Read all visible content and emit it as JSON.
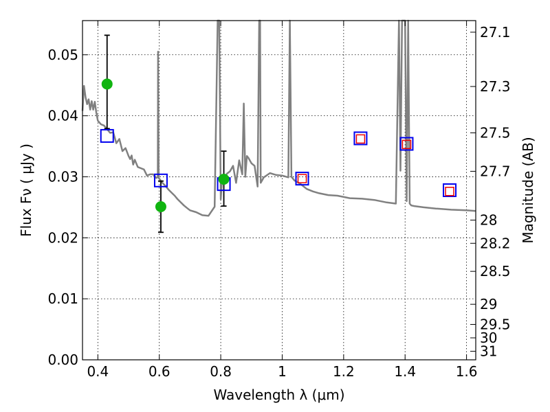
{
  "chart_data": {
    "type": "scatter",
    "xlabel": "Wavelength  λ (μm)",
    "ylabel_left": "Flux  Fν  ( μJy )",
    "ylabel_right": "Magnitude (AB)",
    "xlim": [
      0.35,
      1.63
    ],
    "ylim": [
      0.0,
      0.0556
    ],
    "grid": true,
    "x_ticks": [
      0.4,
      0.6,
      0.8,
      1.0,
      1.2,
      1.4,
      1.6
    ],
    "x_tick_labels": [
      "0.4",
      "0.6",
      "0.8",
      "1",
      "1.2",
      "1.4",
      "1.6"
    ],
    "y_ticks": [
      0.0,
      0.01,
      0.02,
      0.03,
      0.04,
      0.05
    ],
    "y_tick_labels": [
      "0.00",
      "0.01",
      "0.02",
      "0.03",
      "0.04",
      "0.05"
    ],
    "right_ticks": [
      {
        "flux": 0.0537,
        "label": "27.1"
      },
      {
        "flux": 0.0448,
        "label": "27.3"
      },
      {
        "flux": 0.0372,
        "label": "27.5"
      },
      {
        "flux": 0.0309,
        "label": "27.7"
      },
      {
        "flux": 0.0229,
        "label": "28"
      },
      {
        "flux": 0.0191,
        "label": "28.2"
      },
      {
        "flux": 0.0145,
        "label": "28.5"
      },
      {
        "flux": 0.0091,
        "label": "29"
      },
      {
        "flux": 0.0058,
        "label": "29.5"
      },
      {
        "flux": 0.0036,
        "label": "30"
      },
      {
        "flux": 0.0014,
        "label": "31"
      }
    ],
    "series": [
      {
        "kind": "model_sed_line",
        "color": "#808080",
        "x": [
          0.35,
          0.355,
          0.36,
          0.365,
          0.37,
          0.375,
          0.38,
          0.385,
          0.39,
          0.395,
          0.4,
          0.41,
          0.42,
          0.43,
          0.44,
          0.45,
          0.46,
          0.47,
          0.48,
          0.49,
          0.5,
          0.505,
          0.51,
          0.515,
          0.52,
          0.53,
          0.54,
          0.55,
          0.56,
          0.57,
          0.58,
          0.59,
          0.595,
          0.596,
          0.598,
          0.6,
          0.61,
          0.62,
          0.63,
          0.64,
          0.65,
          0.66,
          0.67,
          0.68,
          0.69,
          0.7,
          0.72,
          0.74,
          0.76,
          0.78,
          0.79,
          0.795,
          0.8,
          0.805,
          0.81,
          0.82,
          0.83,
          0.84,
          0.85,
          0.86,
          0.87,
          0.875,
          0.88,
          0.885,
          0.89,
          0.9,
          0.91,
          0.92,
          0.925,
          0.928,
          0.93,
          0.94,
          0.96,
          0.98,
          1.0,
          1.02,
          1.025,
          1.03,
          1.04,
          1.06,
          1.08,
          1.1,
          1.12,
          1.15,
          1.18,
          1.22,
          1.26,
          1.3,
          1.34,
          1.37,
          1.38,
          1.385,
          1.39,
          1.4,
          1.405,
          1.41,
          1.415,
          1.42,
          1.43,
          1.46,
          1.5,
          1.55,
          1.6,
          1.63
        ],
        "y": [
          0.0408,
          0.0449,
          0.043,
          0.0419,
          0.0427,
          0.041,
          0.0424,
          0.041,
          0.0423,
          0.0405,
          0.0392,
          0.0386,
          0.0384,
          0.0378,
          0.0372,
          0.0373,
          0.0355,
          0.0362,
          0.0342,
          0.0347,
          0.0334,
          0.0329,
          0.0335,
          0.032,
          0.0328,
          0.0316,
          0.0314,
          0.0312,
          0.0302,
          0.0304,
          0.0304,
          0.0298,
          0.03,
          0.0505,
          0.0298,
          0.0297,
          0.029,
          0.0285,
          0.0279,
          0.0274,
          0.0269,
          0.0263,
          0.0258,
          0.0253,
          0.0249,
          0.0245,
          0.0242,
          0.0237,
          0.0236,
          0.0251,
          0.0556,
          0.0556,
          0.0263,
          0.03,
          0.0291,
          0.0305,
          0.0309,
          0.0318,
          0.029,
          0.0327,
          0.0304,
          0.042,
          0.03,
          0.0334,
          0.0331,
          0.0322,
          0.0318,
          0.0284,
          0.0556,
          0.0556,
          0.029,
          0.0299,
          0.0306,
          0.0303,
          0.0302,
          0.0299,
          0.0556,
          0.03,
          0.0294,
          0.0288,
          0.028,
          0.0276,
          0.0273,
          0.027,
          0.0269,
          0.0265,
          0.0264,
          0.0262,
          0.0258,
          0.0256,
          0.0556,
          0.031,
          0.0556,
          0.0556,
          0.026,
          0.0556,
          0.0256,
          0.0253,
          0.0252,
          0.025,
          0.0248,
          0.0246,
          0.0245,
          0.0244
        ]
      },
      {
        "kind": "observed",
        "marker": "circle",
        "color": "#10b410",
        "points": [
          {
            "x": 0.43,
            "y": 0.0452,
            "err_low": 0.0379,
            "err_high": 0.0532
          },
          {
            "x": 0.605,
            "y": 0.0251,
            "err_low": 0.0209,
            "err_high": 0.0293
          },
          {
            "x": 0.81,
            "y": 0.0296,
            "err_low": 0.0252,
            "err_high": 0.0342
          }
        ]
      },
      {
        "kind": "model_photometry",
        "marker": "square",
        "color": "#0000ee",
        "points": [
          {
            "x": 0.43,
            "y": 0.0367
          },
          {
            "x": 0.605,
            "y": 0.0294
          },
          {
            "x": 0.81,
            "y": 0.0288
          },
          {
            "x": 1.065,
            "y": 0.0297
          },
          {
            "x": 1.255,
            "y": 0.0363
          },
          {
            "x": 1.405,
            "y": 0.0354
          },
          {
            "x": 1.545,
            "y": 0.0278
          }
        ]
      },
      {
        "kind": "model_photometry_nir",
        "marker": "square",
        "color": "#ee0000",
        "points": [
          {
            "x": 1.065,
            "y": 0.0297
          },
          {
            "x": 1.255,
            "y": 0.0362
          },
          {
            "x": 1.405,
            "y": 0.0353
          },
          {
            "x": 1.545,
            "y": 0.0276
          }
        ]
      }
    ]
  }
}
